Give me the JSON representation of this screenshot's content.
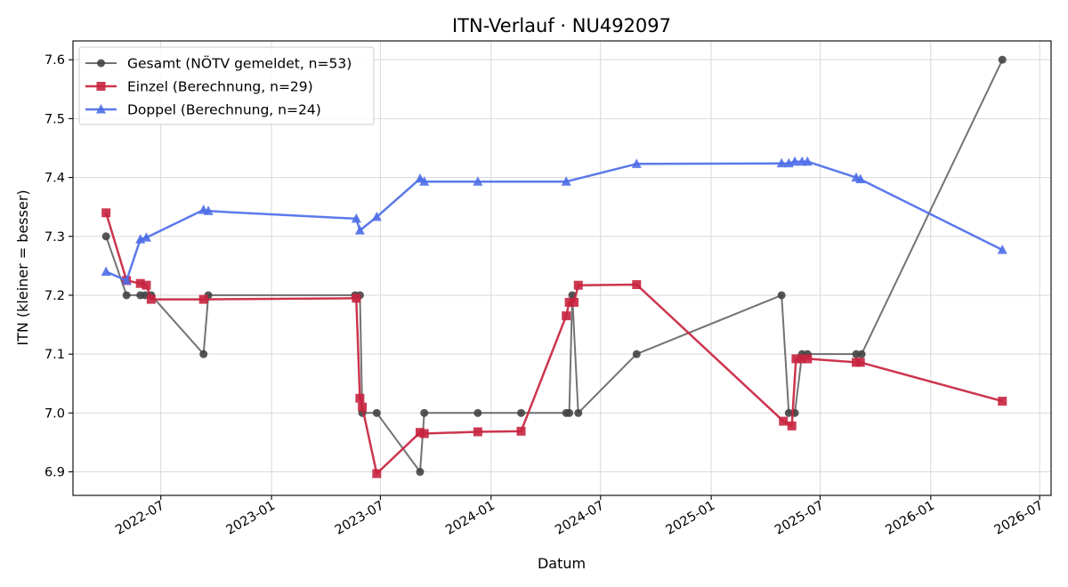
{
  "chart_data": {
    "type": "line",
    "title": "ITN-Verlauf · NU492097",
    "xlabel": "Datum",
    "ylabel": "ITN  (kleiner = besser)",
    "x_type": "date",
    "xlim": [
      "2022-02-05",
      "2026-07-20"
    ],
    "ylim": [
      6.86,
      7.632
    ],
    "xticks": [
      {
        "date": "2022-07-01",
        "label": "2022-07"
      },
      {
        "date": "2023-01-01",
        "label": "2023-01"
      },
      {
        "date": "2023-07-01",
        "label": "2023-07"
      },
      {
        "date": "2024-01-01",
        "label": "2024-01"
      },
      {
        "date": "2024-07-01",
        "label": "2024-07"
      },
      {
        "date": "2025-01-01",
        "label": "2025-01"
      },
      {
        "date": "2025-07-01",
        "label": "2025-07"
      },
      {
        "date": "2026-01-01",
        "label": "2026-01"
      },
      {
        "date": "2026-07-01",
        "label": "2026-07"
      }
    ],
    "yticks": [
      6.9,
      7.0,
      7.1,
      7.2,
      7.3,
      7.4,
      7.5,
      7.6
    ],
    "ytick_labels": [
      "6.9",
      "7.0",
      "7.1",
      "7.2",
      "7.3",
      "7.4",
      "7.5",
      "7.6"
    ],
    "grid": true,
    "legend_position": "top-left",
    "series": [
      {
        "name": "Gesamt (NÖTV gemeldet, n=53)",
        "color": "#444444",
        "marker": "circle",
        "points": [
          [
            "2022-04-01",
            7.3
          ],
          [
            "2022-05-05",
            7.2
          ],
          [
            "2022-05-28",
            7.2
          ],
          [
            "2022-06-05",
            7.2
          ],
          [
            "2022-06-15",
            7.2
          ],
          [
            "2022-09-10",
            7.1
          ],
          [
            "2022-09-18",
            7.2
          ],
          [
            "2023-05-20",
            7.2
          ],
          [
            "2023-05-28",
            7.2
          ],
          [
            "2023-06-01",
            7.0
          ],
          [
            "2023-06-25",
            7.0
          ],
          [
            "2023-09-05",
            6.9
          ],
          [
            "2023-09-12",
            7.0
          ],
          [
            "2023-12-10",
            7.0
          ],
          [
            "2024-02-20",
            7.0
          ],
          [
            "2024-05-05",
            7.0
          ],
          [
            "2024-05-10",
            7.0
          ],
          [
            "2024-05-15",
            7.2
          ],
          [
            "2024-05-25",
            7.0
          ],
          [
            "2024-08-30",
            7.1
          ],
          [
            "2025-04-28",
            7.2
          ],
          [
            "2025-05-10",
            7.0
          ],
          [
            "2025-05-20",
            7.0
          ],
          [
            "2025-06-01",
            7.1
          ],
          [
            "2025-06-10",
            7.1
          ],
          [
            "2025-08-30",
            7.1
          ],
          [
            "2025-09-08",
            7.1
          ],
          [
            "2026-04-30",
            7.6
          ]
        ]
      },
      {
        "name": "Einzel (Berechnung, n=29)",
        "color": "#c8243f",
        "marker": "square",
        "points": [
          [
            "2022-04-01",
            7.34
          ],
          [
            "2022-05-05",
            7.225
          ],
          [
            "2022-05-28",
            7.22
          ],
          [
            "2022-06-07",
            7.217
          ],
          [
            "2022-06-15",
            7.193
          ],
          [
            "2022-09-10",
            7.193
          ],
          [
            "2023-05-22",
            7.195
          ],
          [
            "2023-05-28",
            7.025
          ],
          [
            "2023-06-01",
            7.01
          ],
          [
            "2023-06-25",
            6.897
          ],
          [
            "2023-09-05",
            6.967
          ],
          [
            "2023-09-12",
            6.965
          ],
          [
            "2023-12-10",
            6.968
          ],
          [
            "2024-02-20",
            6.969
          ],
          [
            "2024-05-05",
            7.165
          ],
          [
            "2024-05-10",
            7.188
          ],
          [
            "2024-05-18",
            7.188
          ],
          [
            "2024-05-25",
            7.217
          ],
          [
            "2024-08-30",
            7.218
          ],
          [
            "2025-05-01",
            6.986
          ],
          [
            "2025-05-15",
            6.978
          ],
          [
            "2025-05-22",
            7.092
          ],
          [
            "2025-06-01",
            7.092
          ],
          [
            "2025-06-10",
            7.092
          ],
          [
            "2025-08-30",
            7.086
          ],
          [
            "2025-09-06",
            7.086
          ],
          [
            "2026-04-30",
            7.02
          ]
        ]
      },
      {
        "name": "Doppel (Berechnung, n=24)",
        "color": "#4e6ee8",
        "marker": "triangle",
        "points": [
          [
            "2022-04-01",
            7.24
          ],
          [
            "2022-05-05",
            7.225
          ],
          [
            "2022-05-28",
            7.295
          ],
          [
            "2022-06-07",
            7.298
          ],
          [
            "2022-09-10",
            7.345
          ],
          [
            "2022-09-18",
            7.343
          ],
          [
            "2023-05-22",
            7.33
          ],
          [
            "2023-05-28",
            7.31
          ],
          [
            "2023-06-25",
            7.333
          ],
          [
            "2023-09-05",
            7.398
          ],
          [
            "2023-09-12",
            7.393
          ],
          [
            "2023-12-10",
            7.393
          ],
          [
            "2024-05-05",
            7.393
          ],
          [
            "2024-08-30",
            7.423
          ],
          [
            "2025-04-28",
            7.424
          ],
          [
            "2025-05-10",
            7.424
          ],
          [
            "2025-05-20",
            7.427
          ],
          [
            "2025-06-01",
            7.427
          ],
          [
            "2025-06-10",
            7.427
          ],
          [
            "2025-08-30",
            7.4
          ],
          [
            "2025-09-06",
            7.397
          ],
          [
            "2026-04-30",
            7.277
          ]
        ]
      }
    ]
  }
}
